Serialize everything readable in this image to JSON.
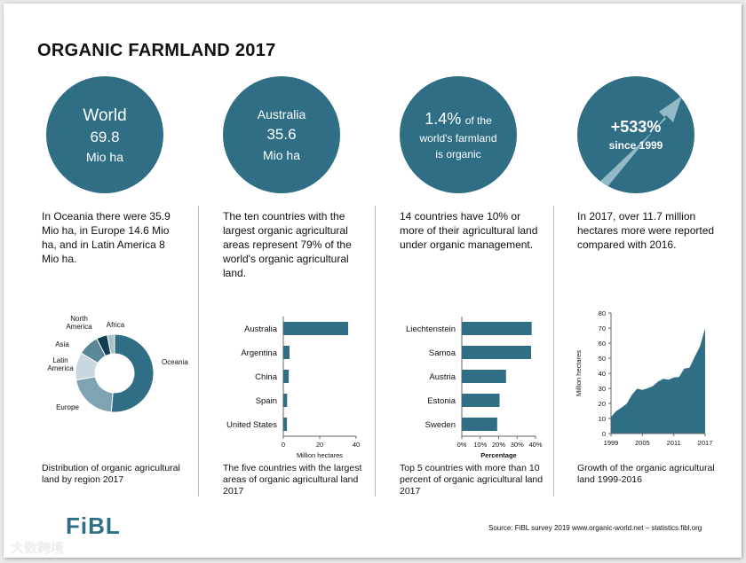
{
  "title": "ORGANIC FARMLAND 2017",
  "colors": {
    "accent": "#2f6e85",
    "donut": [
      "#2f6e85",
      "#7fa3b3",
      "#c9d8df",
      "#5c8799",
      "#123f4f",
      "#a9c0c9"
    ]
  },
  "circles": {
    "world": {
      "label": "World",
      "value": "69.8",
      "unit": "Mio ha"
    },
    "australia": {
      "label": "Australia",
      "value": "35.6",
      "unit": "Mio ha"
    },
    "share": {
      "value": "1.4%",
      "of": "of the",
      "line2": "world's farmland",
      "line3": "is organic"
    },
    "growth": {
      "value": "+533%",
      "since": "since 1999"
    }
  },
  "descriptions": [
    "In Oceania there were 35.9 Mio ha, in Europe 14.6 Mio ha, and in Latin America 8 Mio ha.",
    "The ten countries with the largest organic agricultural areas represent 79% of the world's organic agricultural land.",
    "14 countries have 10% or more of their agricultural land under organic management.",
    "In 2017, over 11.7 million hectares more were reported compared with 2016."
  ],
  "captions": [
    "Distribution of organic agricultural land by region 2017",
    "The five countries with the largest areas of organic agricultural land 2017",
    "Top 5 countries with more than 10 percent of organic agricultural land 2017",
    "Growth of the organic agricultural land 1999-2016"
  ],
  "logo": "FiBL",
  "source": "Source: FiBL survey 2019  www.organic-world.net – statistics.fibl.org",
  "watermark": "大数跨境",
  "chart_data": [
    {
      "type": "pie",
      "title": "Distribution of organic agricultural land by region 2017",
      "categories": [
        "Oceania",
        "Europe",
        "Latin America",
        "Asia",
        "North America",
        "Africa"
      ],
      "values": [
        35.9,
        14.6,
        8.0,
        6.1,
        3.2,
        2.1
      ]
    },
    {
      "type": "bar",
      "orientation": "horizontal",
      "title": "The five countries with the largest areas of organic agricultural land 2017",
      "categories": [
        "Australia",
        "Argentina",
        "China",
        "Spain",
        "United States"
      ],
      "values": [
        35.6,
        3.4,
        3.0,
        2.1,
        2.0
      ],
      "xlabel": "Million hectares",
      "xlim": [
        0,
        40
      ],
      "xticks": [
        0,
        20,
        40
      ]
    },
    {
      "type": "bar",
      "orientation": "horizontal",
      "title": "Top 5 countries with more than 10 percent of organic agricultural land 2017",
      "categories": [
        "Liechtenstein",
        "Samoa",
        "Austria",
        "Estonia",
        "Sweden"
      ],
      "values": [
        37.9,
        37.6,
        24.0,
        20.5,
        19.2
      ],
      "xlabel": "Percentage",
      "xlim": [
        0,
        40
      ],
      "xticks": [
        "0%",
        "10%",
        "20%",
        "30%",
        "40%"
      ]
    },
    {
      "type": "area",
      "title": "Growth of the organic agricultural land 1999-2016",
      "x": [
        1999,
        2000,
        2001,
        2002,
        2003,
        2004,
        2005,
        2006,
        2007,
        2008,
        2009,
        2010,
        2011,
        2012,
        2013,
        2014,
        2015,
        2016,
        2017
      ],
      "values": [
        11.0,
        14.9,
        17.2,
        19.8,
        25.7,
        29.8,
        29.0,
        30.1,
        31.5,
        34.5,
        36.3,
        35.7,
        37.2,
        37.5,
        43.1,
        43.7,
        50.9,
        57.8,
        69.8
      ],
      "ylabel": "Million hectares",
      "ylim": [
        0,
        80
      ],
      "yticks": [
        0,
        10,
        20,
        30,
        40,
        50,
        60,
        70,
        80
      ],
      "xticks": [
        1999,
        2005,
        2011,
        2017
      ]
    }
  ]
}
